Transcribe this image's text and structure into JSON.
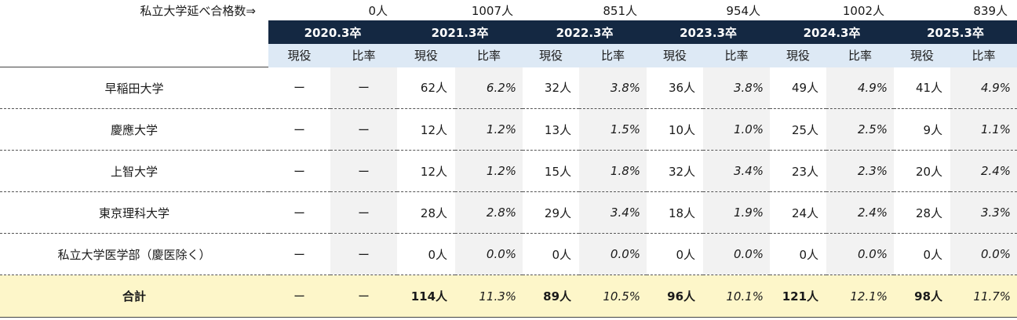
{
  "counts_label": "私立大学延べ合格数⇒",
  "counts": [
    "0人",
    "1007人",
    "851人",
    "954人",
    "1002人",
    "839人"
  ],
  "years": [
    "2020.3卒",
    "2021.3卒",
    "2022.3卒",
    "2023.3卒",
    "2024.3卒",
    "2025.3卒"
  ],
  "sub_headers": {
    "current": "現役",
    "ratio": "比率"
  },
  "rows": [
    {
      "name": "早稲田大学",
      "cells": [
        "ー",
        "ー",
        "62人",
        "6.2%",
        "32人",
        "3.8%",
        "36人",
        "3.8%",
        "49人",
        "4.9%",
        "41人",
        "4.9%"
      ]
    },
    {
      "name": "慶應大学",
      "cells": [
        "ー",
        "ー",
        "12人",
        "1.2%",
        "13人",
        "1.5%",
        "10人",
        "1.0%",
        "25人",
        "2.5%",
        "9人",
        "1.1%"
      ]
    },
    {
      "name": "上智大学",
      "cells": [
        "ー",
        "ー",
        "12人",
        "1.2%",
        "15人",
        "1.8%",
        "32人",
        "3.4%",
        "23人",
        "2.3%",
        "20人",
        "2.4%"
      ]
    },
    {
      "name": "東京理科大学",
      "cells": [
        "ー",
        "ー",
        "28人",
        "2.8%",
        "29人",
        "3.4%",
        "18人",
        "1.9%",
        "24人",
        "2.4%",
        "28人",
        "3.3%"
      ]
    },
    {
      "name": "私立大学医学部（慶医除く）",
      "cells": [
        "ー",
        "ー",
        "0人",
        "0.0%",
        "0人",
        "0.0%",
        "0人",
        "0.0%",
        "0人",
        "0.0%",
        "0人",
        "0.0%"
      ]
    }
  ],
  "total": {
    "name": "合計",
    "cells": [
      "ー",
      "ー",
      "114人",
      "11.3%",
      "89人",
      "10.5%",
      "96人",
      "10.1%",
      "121人",
      "12.1%",
      "98人",
      "11.7%"
    ]
  }
}
